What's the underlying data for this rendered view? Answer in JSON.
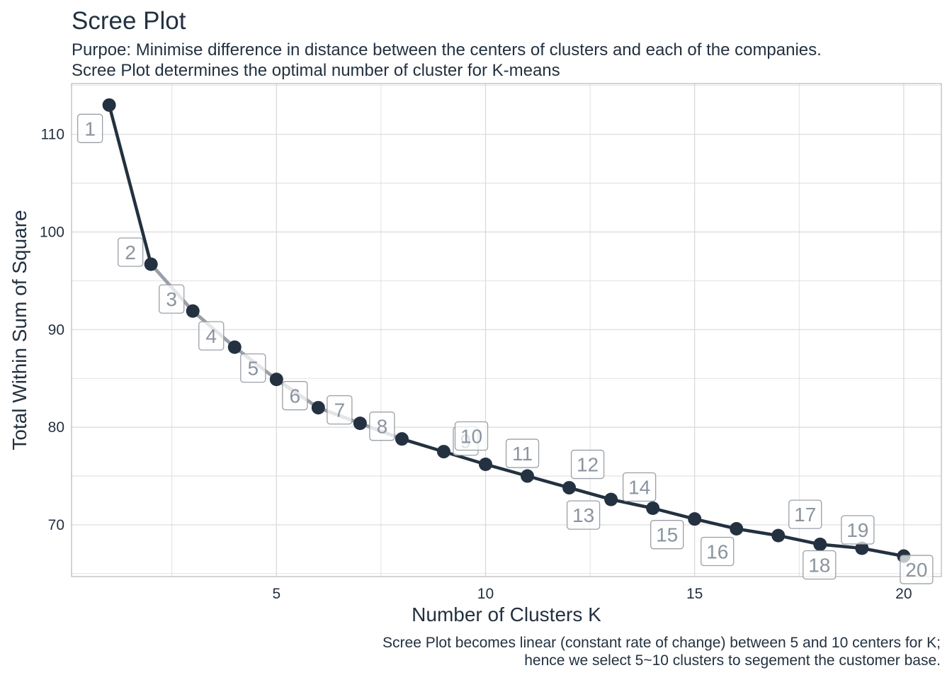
{
  "chart_data": {
    "type": "line",
    "title": "Scree Plot",
    "subtitle": [
      "Purpoe: Minimise difference in distance between the centers of clusters and each of the companies.",
      "Scree Plot determines the optimal number of cluster for K-means"
    ],
    "caption": [
      "Scree Plot becomes linear (constant rate of change) between 5 and 10 centers for K;",
      "hence we select 5~10 clusters to segement the customer base."
    ],
    "xlabel": "Number of Clusters K",
    "ylabel": "Total Within Sum of Square",
    "xlim": [
      0.1,
      20.9
    ],
    "ylim": [
      64.7,
      115.2
    ],
    "xticks": [
      5,
      10,
      15,
      20
    ],
    "yticks": [
      70,
      80,
      90,
      100,
      110
    ],
    "grid": true,
    "legend": "none",
    "x": [
      1,
      2,
      3,
      4,
      5,
      6,
      7,
      8,
      9,
      10,
      11,
      12,
      13,
      14,
      15,
      16,
      17,
      18,
      19,
      20
    ],
    "values": [
      113.0,
      96.7,
      91.9,
      88.2,
      84.9,
      82.0,
      80.4,
      78.8,
      77.5,
      76.2,
      75.0,
      73.8,
      72.6,
      71.7,
      70.6,
      69.6,
      68.9,
      68.0,
      67.6,
      66.8
    ],
    "point_labels": [
      "1",
      "2",
      "3",
      "4",
      "5",
      "6",
      "7",
      "8",
      "9",
      "10",
      "11",
      "12",
      "13",
      "14",
      "15",
      "16",
      "17",
      "18",
      "19",
      "20"
    ],
    "highlight_segment": [
      2,
      8
    ],
    "colors": {
      "line": "#233140",
      "highlight": "#9aa0a8",
      "label": "#8a94a0",
      "label_border": "#9aa0a8",
      "grid": "#d9d9d9",
      "panel_border": "#b8b8b8"
    }
  }
}
